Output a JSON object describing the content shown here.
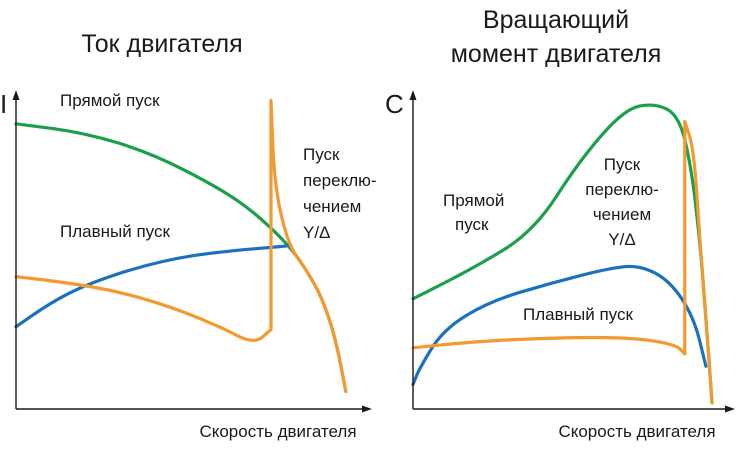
{
  "colors": {
    "direct": "#1aa04a",
    "soft": "#1c70c0",
    "star_delta": "#f29a2e",
    "axis": "#1a1a1a"
  },
  "chart_data": [
    {
      "type": "line",
      "title": "Ток двигателя",
      "ylabel": "I",
      "xlabel": "Скорость двигателя",
      "xlim": [
        0,
        1
      ],
      "ylim": [
        0,
        1
      ],
      "grid": false,
      "annotations": [
        "Прямой пуск",
        "Плавный пуск",
        "Пуск",
        "переклю-",
        "чением",
        "Y/Δ"
      ],
      "series": [
        {
          "key": "direct",
          "name": "Прямой пуск",
          "x": [
            0,
            0.2,
            0.4,
            0.6,
            0.7,
            0.8,
            0.85,
            0.9,
            0.94,
            0.97
          ],
          "y": [
            0.97,
            0.94,
            0.87,
            0.75,
            0.67,
            0.56,
            0.48,
            0.38,
            0.24,
            0.06
          ]
        },
        {
          "key": "soft",
          "name": "Плавный пуск",
          "x": [
            0,
            0.1,
            0.2,
            0.35,
            0.5,
            0.65,
            0.75,
            0.8
          ],
          "y": [
            0.28,
            0.36,
            0.42,
            0.48,
            0.52,
            0.54,
            0.55,
            0.555
          ]
        },
        {
          "key": "star_delta",
          "name": "Пуск переключением Y/Δ",
          "x": [
            0,
            0.15,
            0.3,
            0.45,
            0.6,
            0.7,
            0.75,
            0.75,
            0.76,
            0.8,
            0.85,
            0.9,
            0.94,
            0.97
          ],
          "y": [
            0.45,
            0.43,
            0.4,
            0.35,
            0.28,
            0.22,
            0.27,
            1.05,
            0.76,
            0.56,
            0.48,
            0.38,
            0.24,
            0.06
          ]
        }
      ]
    },
    {
      "type": "line",
      "title": "Вращающий момент двигателя",
      "title_lines": [
        "Вращающий",
        "момент двигателя"
      ],
      "ylabel": "C",
      "xlabel": "Скорость двигателя",
      "xlim": [
        0,
        1
      ],
      "ylim": [
        0,
        1
      ],
      "grid": false,
      "annotations": [
        "Прямой",
        "пуск",
        "Пуск",
        "переклю-",
        "чением",
        "Y/Δ",
        "Плавный пуск"
      ],
      "series": [
        {
          "key": "direct",
          "name": "Прямой пуск",
          "x": [
            0,
            0.2,
            0.4,
            0.55,
            0.7,
            0.8,
            0.88,
            0.92,
            0.95,
            0.97,
            0.99
          ],
          "y": [
            0.36,
            0.46,
            0.58,
            0.81,
            0.98,
            1.0,
            0.96,
            0.8,
            0.55,
            0.3,
            0.02
          ]
        },
        {
          "key": "soft",
          "name": "Плавный пуск",
          "x": [
            0,
            0.02,
            0.1,
            0.25,
            0.45,
            0.65,
            0.75,
            0.85,
            0.93,
            0.97
          ],
          "y": [
            0.08,
            0.13,
            0.26,
            0.35,
            0.41,
            0.46,
            0.47,
            0.42,
            0.3,
            0.14
          ]
        },
        {
          "key": "star_delta",
          "name": "Пуск переключением Y/Δ",
          "x": [
            0,
            0.2,
            0.4,
            0.6,
            0.75,
            0.87,
            0.9,
            0.9,
            0.93,
            0.95,
            0.97,
            0.99
          ],
          "y": [
            0.2,
            0.22,
            0.23,
            0.235,
            0.23,
            0.21,
            0.18,
            0.94,
            0.85,
            0.55,
            0.3,
            0.02
          ]
        }
      ]
    }
  ]
}
